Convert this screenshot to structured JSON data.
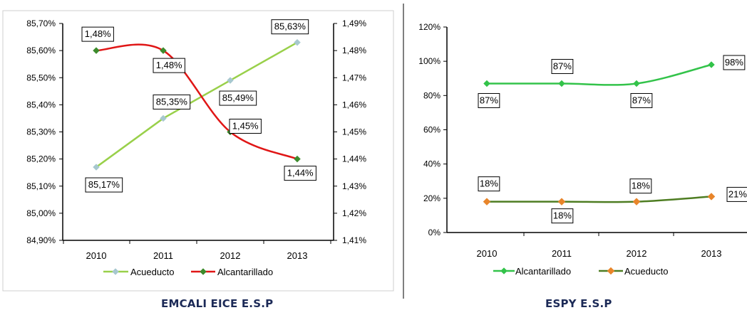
{
  "colors": {
    "acueducto_left": "#99d04a",
    "acueducto_left_marker": "#a7c8cf",
    "alcantarillado_left": "#e01616",
    "alcantarillado_left_marker": "#3d8b2c",
    "alcantarillado_right": "#33c34a",
    "acueducto_right": "#4e7d22",
    "acueducto_right_marker": "#e8852a",
    "caption": "#1c2a57"
  },
  "captions": {
    "left": "EMCALI EICE E.S.P",
    "right": "ESPY E.S.P"
  },
  "chart_data": [
    {
      "type": "line",
      "title": "",
      "categories": [
        "2010",
        "2011",
        "2012",
        "2013"
      ],
      "y_left_ticks": [
        "84,90%",
        "85,00%",
        "85,10%",
        "85,20%",
        "85,30%",
        "85,40%",
        "85,50%",
        "85,60%",
        "85,70%"
      ],
      "y_right_ticks": [
        "1,41%",
        "1,42%",
        "1,43%",
        "1,44%",
        "1,45%",
        "1,46%",
        "1,47%",
        "1,48%",
        "1,49%"
      ],
      "ylim_left": [
        84.9,
        85.7
      ],
      "ylim_right": [
        1.41,
        1.49
      ],
      "legend_position": "bottom",
      "series": [
        {
          "name": "Acueducto",
          "axis": "left",
          "values": [
            85.17,
            85.35,
            85.49,
            85.63
          ],
          "labels": [
            "85,17%",
            "85,35%",
            "85,49%",
            "85,63%"
          ]
        },
        {
          "name": "Alcantarillado",
          "axis": "right",
          "values": [
            1.48,
            1.48,
            1.45,
            1.44
          ],
          "labels": [
            "1,48%",
            "1,48%",
            "1,45%",
            "1,44%"
          ]
        }
      ]
    },
    {
      "type": "line",
      "title": "",
      "categories": [
        "2010",
        "2011",
        "2012",
        "2013"
      ],
      "y_ticks": [
        "0%",
        "20%",
        "40%",
        "60%",
        "80%",
        "100%",
        "120%"
      ],
      "ylim": [
        0,
        120
      ],
      "legend_position": "bottom",
      "series": [
        {
          "name": "Alcantarillado",
          "values": [
            87,
            87,
            87,
            98
          ],
          "labels": [
            "87%",
            "87%",
            "87%",
            "98%"
          ]
        },
        {
          "name": "Acueducto",
          "values": [
            18,
            18,
            18,
            21
          ],
          "labels": [
            "18%",
            "18%",
            "18%",
            "21%"
          ]
        }
      ]
    }
  ]
}
